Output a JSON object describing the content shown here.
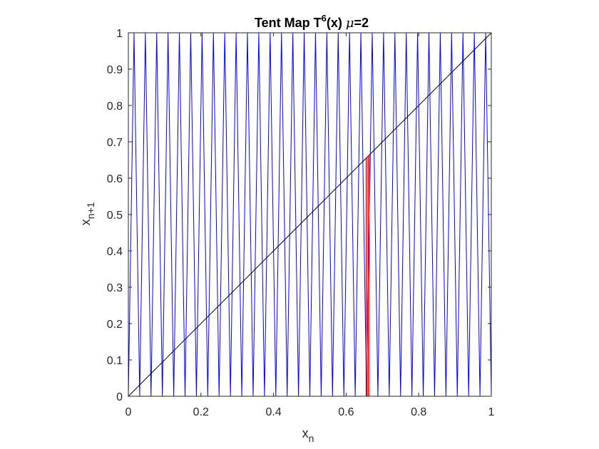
{
  "chart_data": {
    "type": "line",
    "title": {
      "prefix": "Tent Map T",
      "superscript": "6",
      "middle": "(x) ",
      "symbol": "μ",
      "suffix": "=2"
    },
    "xlabel": {
      "base": "x",
      "subscript": "n"
    },
    "ylabel": {
      "base": "x",
      "subscript": "n+1"
    },
    "xlim": [
      0,
      1
    ],
    "ylim": [
      0,
      1
    ],
    "xticks": [
      0,
      0.2,
      0.4,
      0.6,
      0.8,
      1
    ],
    "xtick_labels": [
      "0",
      "0.2",
      "0.4",
      "0.6",
      "0.8",
      "1"
    ],
    "yticks": [
      0,
      0.1,
      0.2,
      0.3,
      0.4,
      0.5,
      0.6,
      0.7,
      0.8,
      0.9,
      1
    ],
    "ytick_labels": [
      "0",
      "0.1",
      "0.2",
      "0.3",
      "0.4",
      "0.5",
      "0.6",
      "0.7",
      "0.8",
      "0.9",
      "1"
    ],
    "grid": false,
    "series": [
      {
        "name": "T^6(x)",
        "kind": "tent_map_iterate",
        "mu": 2,
        "iterations": 6,
        "color": "#0000ff"
      },
      {
        "name": "identity y=x",
        "kind": "line",
        "x": [
          0,
          1
        ],
        "y": [
          0,
          1
        ],
        "color": "#000000"
      },
      {
        "name": "cobweb",
        "kind": "polyline",
        "x": [
          0.03,
          0.655,
          0.655,
          0.658,
          0.658,
          0.661,
          0.661,
          0.664,
          0.664
        ],
        "y": [
          0,
          0,
          0.655,
          0.655,
          0,
          0,
          0.661,
          0.661,
          0
        ],
        "color": "#ff0000"
      }
    ]
  }
}
